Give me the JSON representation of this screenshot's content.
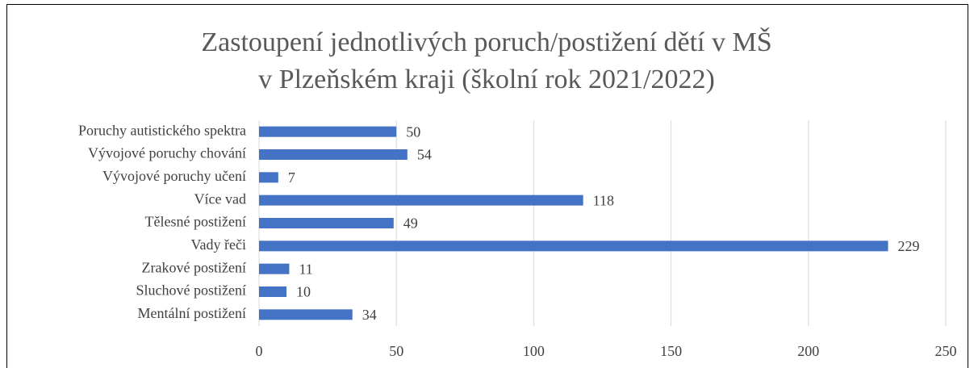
{
  "chart_data": {
    "type": "hbar",
    "title": [
      "Zastoupení jednotlivých poruch/postižení dětí v MŠ",
      "v Plzeňském kraji (školní rok 2021/2022)"
    ],
    "categories": [
      "Poruchy autistického spektra",
      "Vývojové poruchy chování",
      "Vývojové poruchy učení",
      "Více vad",
      "Tělesné postižení",
      "Vady řeči",
      "Zrakové postižení",
      "Sluchové postižení",
      "Mentální postižení"
    ],
    "values": [
      50,
      54,
      7,
      118,
      49,
      229,
      11,
      10,
      34
    ],
    "color": "#4472c4",
    "xlim": [
      0,
      250
    ],
    "xticks": [
      0,
      50,
      100,
      150,
      200,
      250
    ],
    "grid": true
  }
}
